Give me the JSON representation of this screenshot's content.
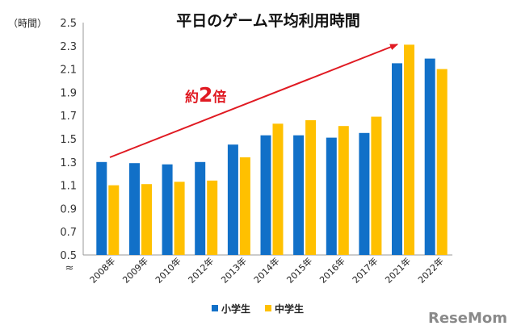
{
  "chart_data": {
    "type": "bar",
    "title": "平日のゲーム平均利用時間",
    "unit_label": "（時間）",
    "categories": [
      "2008年",
      "2009年",
      "2010年",
      "2012年",
      "2013年",
      "2014年",
      "2015年",
      "2016年",
      "2017年",
      "2021年",
      "2022年"
    ],
    "series": [
      {
        "name": "小学生",
        "color": "#1170c8",
        "values": [
          1.3,
          1.29,
          1.28,
          1.3,
          1.45,
          1.53,
          1.53,
          1.51,
          1.55,
          2.15,
          2.19
        ]
      },
      {
        "name": "中学生",
        "color": "#ffc000",
        "values": [
          1.1,
          1.11,
          1.13,
          1.14,
          1.34,
          1.63,
          1.66,
          1.61,
          1.69,
          2.31,
          2.1
        ]
      }
    ],
    "ylim": [
      0.5,
      2.5
    ],
    "yticks": [
      "0.5",
      "0.7",
      "0.9",
      "1.1",
      "1.3",
      "1.5",
      "1.7",
      "1.9",
      "2.1",
      "2.3",
      "2.5"
    ],
    "axis_break_symbol": "≈",
    "grid": false,
    "legend_position": "bottom",
    "annotation": {
      "prefix": "約",
      "number": "2",
      "suffix": "倍",
      "color": "#e01a22"
    }
  },
  "watermark": "ReseMom"
}
